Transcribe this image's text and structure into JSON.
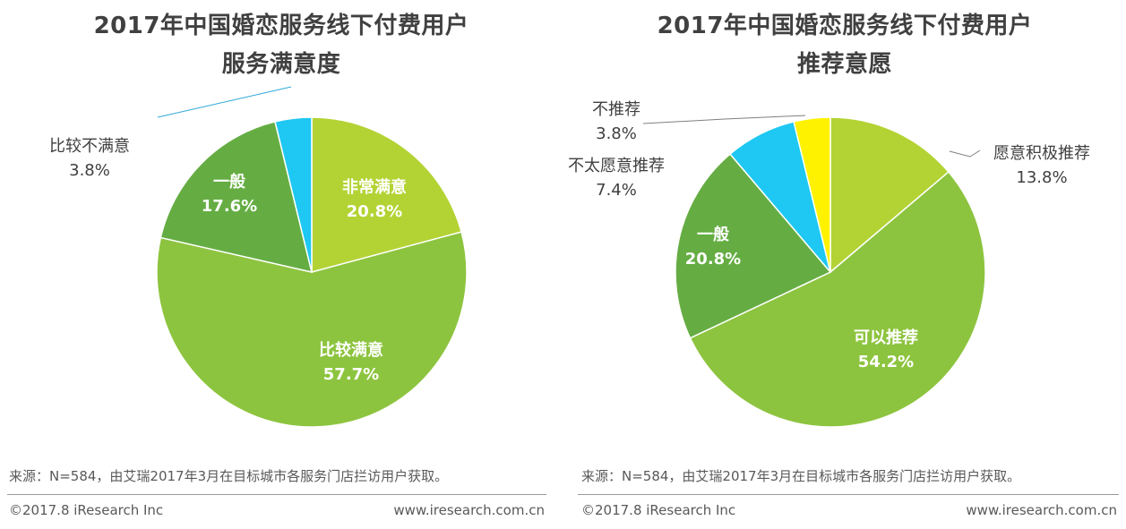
{
  "colors": {
    "light_green": "#b3d334",
    "mid_green": "#8dc43f",
    "dark_green": "#65ad43",
    "cyan": "#1ec8f2",
    "yellow": "#fff200",
    "text": "#404040",
    "leader_blue": "#2fa8d8",
    "leader_gray": "#7f7f7f"
  },
  "charts": [
    {
      "title_line1": "2017年中国婚恋服务线下付费用户",
      "title_line2": "服务满意度",
      "source": "来源：N=584，由艾瑞2017年3月在目标城市各服务门店拦访用户获取。",
      "copyright": "©2017.8 iResearch Inc",
      "website": "www.iresearch.com.cn"
    },
    {
      "title_line1": "2017年中国婚恋服务线下付费用户",
      "title_line2": "推荐意愿",
      "source": "来源：N=584，由艾瑞2017年3月在目标城市各服务门店拦访用户获取。",
      "copyright": "©2017.8 iResearch Inc",
      "website": "www.iresearch.com.cn"
    }
  ],
  "chart_data": [
    {
      "type": "pie",
      "title": "2017年中国婚恋服务线下付费用户服务满意度",
      "slices": [
        {
          "label": "非常满意",
          "value": 20.8,
          "display": "20.8%",
          "color": "#b3d334",
          "label_inside": true
        },
        {
          "label": "比较满意",
          "value": 57.7,
          "display": "57.7%",
          "color": "#8dc43f",
          "label_inside": true
        },
        {
          "label": "一般",
          "value": 17.6,
          "display": "17.6%",
          "color": "#65ad43",
          "label_inside": true
        },
        {
          "label": "比较不满意",
          "value": 3.8,
          "display": "3.8%",
          "color": "#1ec8f2",
          "label_inside": false
        }
      ]
    },
    {
      "type": "pie",
      "title": "2017年中国婚恋服务线下付费用户推荐意愿",
      "slices": [
        {
          "label": "愿意积极推荐",
          "value": 13.8,
          "display": "13.8%",
          "color": "#b3d334",
          "label_inside": false
        },
        {
          "label": "可以推荐",
          "value": 54.2,
          "display": "54.2%",
          "color": "#8dc43f",
          "label_inside": true
        },
        {
          "label": "一般",
          "value": 20.8,
          "display": "20.8%",
          "color": "#65ad43",
          "label_inside": true
        },
        {
          "label": "不太愿意推荐",
          "value": 7.4,
          "display": "7.4%",
          "color": "#1ec8f2",
          "label_inside": false
        },
        {
          "label": "不推荐",
          "value": 3.8,
          "display": "3.8%",
          "color": "#fff200",
          "label_inside": false
        }
      ]
    }
  ]
}
